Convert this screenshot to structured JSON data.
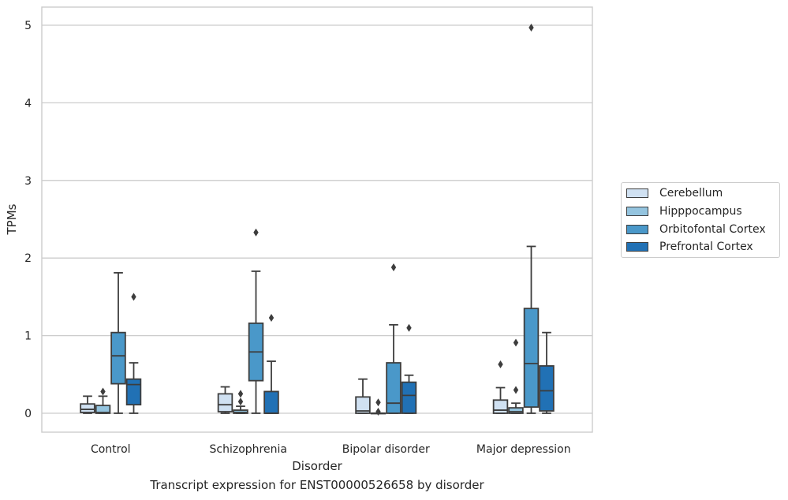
{
  "chart_data": {
    "type": "box",
    "xlabel": "Disorder",
    "ylabel": "TPMs",
    "ylim": [
      -0.25,
      5.22
    ],
    "yticks": [
      0,
      1,
      2,
      3,
      4,
      5
    ],
    "grid": "horizontal",
    "legend_position": "right",
    "categories": [
      "Control",
      "Schizophrenia",
      "Bipolar disorder",
      "Major depression"
    ],
    "series": [
      {
        "name": "Cerebellum",
        "color": "#d0e1f2",
        "boxes": [
          {
            "whislo": 0.0,
            "q1": 0.01,
            "med": 0.05,
            "q3": 0.12,
            "whishi": 0.22,
            "fliers": []
          },
          {
            "whislo": 0.0,
            "q1": 0.02,
            "med": 0.11,
            "q3": 0.25,
            "whishi": 0.34,
            "fliers": []
          },
          {
            "whislo": 0.0,
            "q1": 0.0,
            "med": 0.03,
            "q3": 0.21,
            "whishi": 0.44,
            "fliers": []
          },
          {
            "whislo": 0.0,
            "q1": 0.0,
            "med": 0.04,
            "q3": 0.17,
            "whishi": 0.33,
            "fliers": [
              0.63
            ]
          }
        ]
      },
      {
        "name": "Hipppocampus",
        "color": "#94c4df",
        "boxes": [
          {
            "whislo": 0.0,
            "q1": 0.0,
            "med": 0.01,
            "q3": 0.1,
            "whishi": 0.22,
            "fliers": [
              0.28
            ]
          },
          {
            "whislo": 0.0,
            "q1": 0.0,
            "med": 0.01,
            "q3": 0.04,
            "whishi": 0.09,
            "fliers": [
              0.15,
              0.25
            ]
          },
          {
            "whislo": 0.0,
            "q1": 0.0,
            "med": 0.0,
            "q3": 0.0,
            "whishi": 0.0,
            "fliers": [
              0.02,
              0.14
            ]
          },
          {
            "whislo": 0.0,
            "q1": 0.0,
            "med": 0.02,
            "q3": 0.07,
            "whishi": 0.13,
            "fliers": [
              0.3,
              0.91
            ]
          }
        ]
      },
      {
        "name": "Orbitofontal Cortex",
        "color": "#4a98c9",
        "boxes": [
          {
            "whislo": 0.0,
            "q1": 0.38,
            "med": 0.74,
            "q3": 1.04,
            "whishi": 1.81,
            "fliers": []
          },
          {
            "whislo": 0.0,
            "q1": 0.42,
            "med": 0.79,
            "q3": 1.16,
            "whishi": 1.83,
            "fliers": [
              2.33
            ]
          },
          {
            "whislo": 0.0,
            "q1": 0.0,
            "med": 0.13,
            "q3": 0.65,
            "whishi": 1.14,
            "fliers": [
              1.88
            ]
          },
          {
            "whislo": 0.0,
            "q1": 0.08,
            "med": 0.64,
            "q3": 1.35,
            "whishi": 2.15,
            "fliers": [
              4.97
            ]
          }
        ]
      },
      {
        "name": "Prefrontal Cortex",
        "color": "#2171b5",
        "boxes": [
          {
            "whislo": 0.0,
            "q1": 0.11,
            "med": 0.37,
            "q3": 0.44,
            "whishi": 0.65,
            "fliers": [
              1.5
            ]
          },
          {
            "whislo": 0.0,
            "q1": 0.0,
            "med": 0.0,
            "q3": 0.28,
            "whishi": 0.67,
            "fliers": [
              1.23
            ]
          },
          {
            "whislo": 0.0,
            "q1": 0.0,
            "med": 0.23,
            "q3": 0.4,
            "whishi": 0.49,
            "fliers": [
              1.1
            ]
          },
          {
            "whislo": 0.0,
            "q1": 0.03,
            "med": 0.29,
            "q3": 0.61,
            "whishi": 1.04,
            "fliers": []
          }
        ]
      }
    ],
    "caption": "Transcript expression for ENST00000526658 by disorder"
  }
}
